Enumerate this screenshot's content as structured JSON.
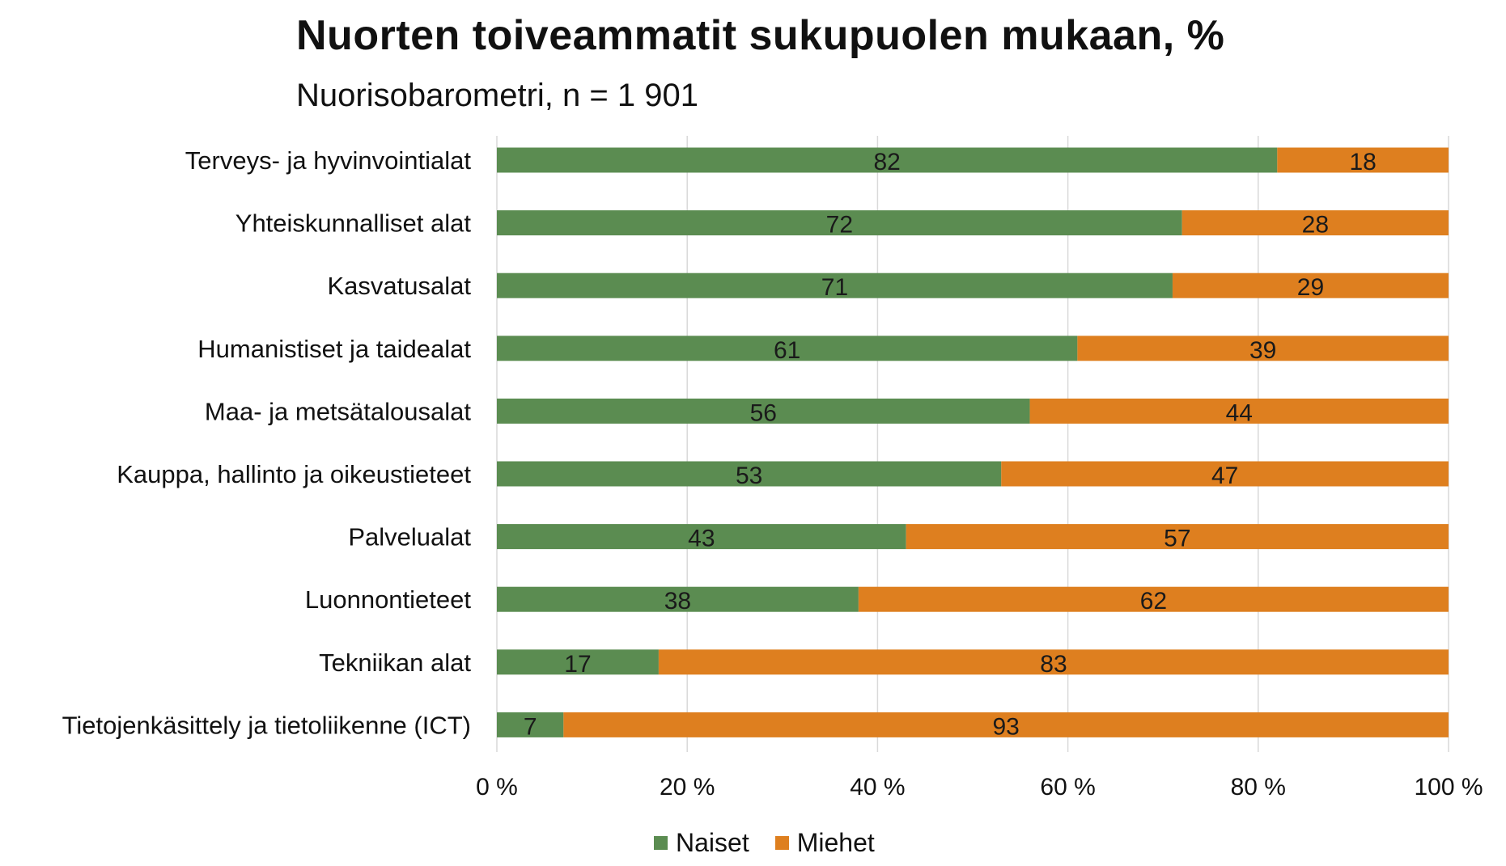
{
  "chart_data": {
    "type": "bar",
    "orientation": "horizontal",
    "stacked": true,
    "title": "Nuorten toiveammatit sukupuolen mukaan, %",
    "subtitle": "Nuorisobarometri, n = 1 901",
    "categories": [
      "Terveys- ja hyvinvointialat",
      "Yhteiskunnalliset alat",
      "Kasvatusalat",
      "Humanistiset ja taidealat",
      "Maa- ja metsätalousalat",
      "Kauppa, hallinto ja oikeustieteet",
      "Palvelualat",
      "Luonnontieteet",
      "Tekniikan alat",
      "Tietojenkäsittely ja tietoliikenne (ICT)"
    ],
    "series": [
      {
        "name": "Naiset",
        "color": "#5b8c51",
        "values": [
          82,
          72,
          71,
          61,
          56,
          53,
          43,
          38,
          17,
          7
        ]
      },
      {
        "name": "Miehet",
        "color": "#de7f1f",
        "values": [
          18,
          28,
          29,
          39,
          44,
          47,
          57,
          62,
          83,
          93
        ]
      }
    ],
    "xlim": [
      0,
      100
    ],
    "xticks": [
      0,
      20,
      40,
      60,
      80,
      100
    ],
    "xtick_labels": [
      "0 %",
      "20 %",
      "40 %",
      "60 %",
      "80 %",
      "100 %"
    ],
    "grid": "vertical",
    "legend": "bottom-center",
    "data_labels": true
  }
}
